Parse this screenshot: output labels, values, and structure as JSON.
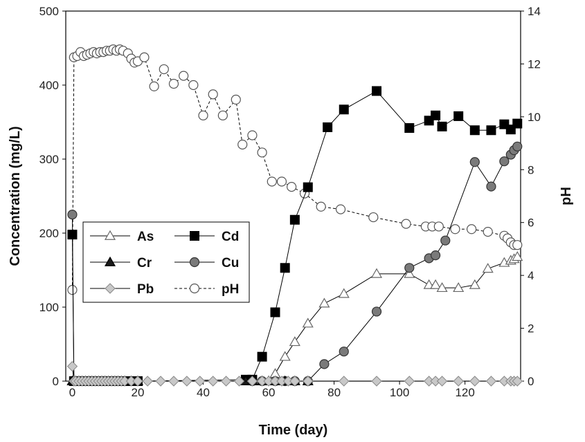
{
  "chart_data": {
    "type": "scatter",
    "xlabel": "Time (day)",
    "ylabel_left": "Concentration (mg/L)",
    "ylabel_right": "pH",
    "xlim": [
      -2,
      137
    ],
    "ylim_left": [
      0,
      500
    ],
    "ylim_right": [
      0,
      14
    ],
    "x_ticks": [
      0,
      20,
      40,
      60,
      80,
      100,
      120
    ],
    "y_ticks_left": [
      0,
      100,
      200,
      300,
      400,
      500
    ],
    "y_ticks_right": [
      0,
      2,
      4,
      6,
      8,
      10,
      12,
      14
    ],
    "grid": false,
    "legend_position": "left-middle",
    "series": [
      {
        "name": "As",
        "axis": "left",
        "marker": "triangle-open",
        "line": "solid",
        "x": [
          0,
          0.5,
          1,
          2,
          3,
          4,
          5,
          6,
          7,
          8,
          9,
          10,
          11,
          12,
          13,
          14,
          15,
          16,
          18,
          20,
          53,
          55,
          58,
          60,
          62,
          65,
          68,
          72,
          77,
          83,
          93,
          103,
          109,
          111,
          113,
          118,
          123,
          127,
          132,
          134,
          135,
          136
        ],
        "y": [
          0,
          0,
          0,
          0,
          0,
          0,
          0,
          0,
          0,
          0,
          0,
          0,
          0,
          0,
          0,
          0,
          0,
          0,
          0,
          0,
          0,
          0,
          0,
          0,
          10,
          33,
          53,
          78,
          105,
          118,
          145,
          145,
          130,
          130,
          126,
          126,
          130,
          152,
          160,
          163,
          165,
          168
        ]
      },
      {
        "name": "Cd",
        "axis": "left",
        "marker": "square-filled",
        "line": "solid",
        "x": [
          0,
          0.5,
          1,
          2,
          3,
          4,
          5,
          6,
          7,
          8,
          9,
          10,
          11,
          12,
          13,
          14,
          15,
          16,
          18,
          20,
          53,
          55,
          58,
          62,
          65,
          68,
          72,
          78,
          83,
          93,
          103,
          109,
          111,
          113,
          118,
          123,
          128,
          132,
          134,
          136
        ],
        "y": [
          198,
          0,
          0,
          0,
          0,
          0,
          0,
          0,
          0,
          0,
          0,
          0,
          0,
          0,
          0,
          0,
          0,
          0,
          0,
          0,
          2,
          2,
          33,
          93,
          153,
          218,
          262,
          343,
          367,
          392,
          342,
          352,
          359,
          344,
          358,
          339,
          339,
          347,
          340,
          348
        ]
      },
      {
        "name": "Cr",
        "axis": "left",
        "marker": "triangle-filled",
        "line": "solid",
        "x": [
          0,
          0.5,
          1,
          2,
          3,
          4,
          5,
          6,
          7,
          8,
          9,
          10,
          11,
          12,
          13,
          14,
          15,
          16,
          18,
          20,
          53,
          55,
          58,
          60,
          62,
          65,
          68,
          72
        ],
        "y": [
          0,
          0,
          0,
          0,
          0,
          0,
          0,
          0,
          0,
          0,
          0,
          0,
          0,
          0,
          0,
          0,
          0,
          0,
          0,
          0,
          0,
          0,
          0,
          0,
          0,
          0,
          0,
          0
        ]
      },
      {
        "name": "Cu",
        "axis": "left",
        "marker": "circle-filled",
        "line": "solid",
        "x": [
          0,
          0.5,
          1,
          2,
          3,
          4,
          5,
          6,
          7,
          8,
          9,
          10,
          11,
          12,
          13,
          14,
          15,
          16,
          18,
          20,
          55,
          58,
          62,
          65,
          68,
          72,
          77,
          83,
          93,
          103,
          109,
          111,
          114,
          123,
          128,
          132,
          134,
          135,
          136
        ],
        "y": [
          225,
          0,
          0,
          0,
          0,
          0,
          0,
          0,
          0,
          0,
          0,
          0,
          0,
          0,
          0,
          0,
          0,
          0,
          0,
          0,
          0,
          0,
          0,
          0,
          0,
          0,
          23,
          40,
          94,
          153,
          166,
          170,
          190,
          296,
          263,
          297,
          306,
          312,
          317
        ]
      },
      {
        "name": "Pb",
        "axis": "left",
        "marker": "diamond-filled",
        "line": "solid",
        "x": [
          0,
          0.5,
          1,
          2,
          3,
          4,
          5,
          6,
          7,
          8,
          9,
          10,
          11,
          12,
          13,
          14,
          15,
          16,
          18,
          20,
          23,
          27,
          31,
          35,
          39,
          43,
          47,
          51,
          55,
          58,
          60,
          62,
          64,
          66,
          68,
          72,
          83,
          93,
          103,
          109,
          111,
          113,
          118,
          123,
          128,
          132,
          134,
          135,
          136
        ],
        "y": [
          20,
          0,
          0,
          0,
          0,
          0,
          0,
          0,
          0,
          0,
          0,
          0,
          0,
          0,
          0,
          0,
          0,
          0,
          0,
          0,
          0,
          0,
          0,
          0,
          0,
          0,
          0,
          0,
          0,
          0,
          0,
          0,
          0,
          0,
          0,
          0,
          0,
          0,
          0,
          0,
          0,
          0,
          0,
          0,
          0,
          0,
          0,
          0,
          0
        ]
      },
      {
        "name": "pH",
        "axis": "right",
        "marker": "circle-open",
        "line": "dashed",
        "x": [
          0,
          0.5,
          1.5,
          2.5,
          3.5,
          4.5,
          5.5,
          6.5,
          7.5,
          8.5,
          9.5,
          10.5,
          11.5,
          12.5,
          13.5,
          14.5,
          15.5,
          17,
          18,
          19,
          20,
          22,
          25,
          28,
          31,
          34,
          37,
          40,
          43,
          46,
          50,
          52,
          55,
          58,
          61,
          64,
          67,
          71,
          76,
          82,
          92,
          102,
          108,
          110,
          112,
          117,
          122,
          127,
          132,
          133,
          134,
          135,
          136
        ],
        "y": [
          3.45,
          12.25,
          12.3,
          12.45,
          12.3,
          12.35,
          12.4,
          12.45,
          12.4,
          12.45,
          12.45,
          12.5,
          12.5,
          12.55,
          12.5,
          12.55,
          12.5,
          12.4,
          12.2,
          12.05,
          12.1,
          12.25,
          11.15,
          11.8,
          11.25,
          11.55,
          11.2,
          10.05,
          10.85,
          10.05,
          10.65,
          8.95,
          9.3,
          8.65,
          7.55,
          7.55,
          7.35,
          7.1,
          6.6,
          6.5,
          6.2,
          5.95,
          5.85,
          5.85,
          5.85,
          5.75,
          5.75,
          5.65,
          5.5,
          5.4,
          5.25,
          5.15,
          5.15
        ]
      }
    ]
  }
}
